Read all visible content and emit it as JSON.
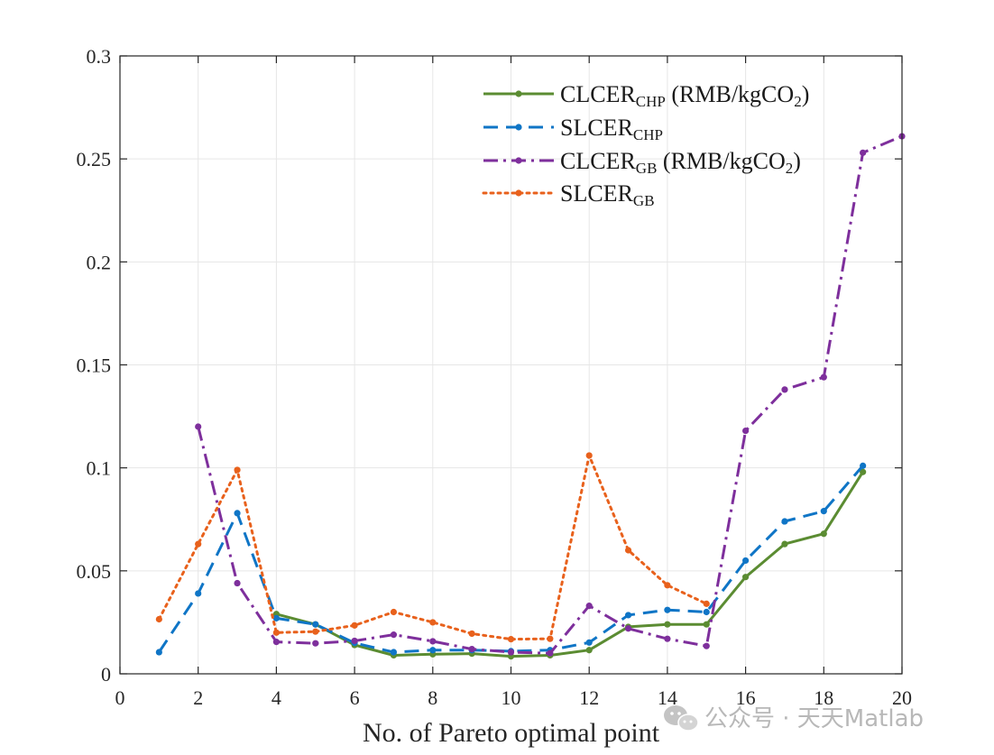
{
  "chart_data": {
    "type": "line",
    "title": "",
    "xlabel": "No. of Pareto optimal point",
    "ylabel": "",
    "xlim": [
      0,
      20
    ],
    "ylim": [
      0,
      0.3
    ],
    "xticks": [
      0,
      2,
      4,
      6,
      8,
      10,
      12,
      14,
      16,
      18,
      20
    ],
    "xtick_labels": [
      "0",
      "2",
      "4",
      "6",
      "8",
      "10",
      "12",
      "14",
      "16",
      "18",
      "20"
    ],
    "yticks": [
      0,
      0.05,
      0.1,
      0.15,
      0.2,
      0.25,
      0.3
    ],
    "ytick_labels": [
      "0",
      "0.05",
      "0.1",
      "0.15",
      "0.2",
      "0.25",
      "0.3"
    ],
    "grid": true,
    "legend_position": "top-right",
    "series": [
      {
        "name": "CLCER_CHP (RMB/kgCO2)",
        "legend_main": "CLCER",
        "legend_sub": "CHP",
        "legend_suffix": " (RMB/kgCO",
        "legend_suffix_sub": "2",
        "legend_end": ")",
        "color": "#5b8c32",
        "style": "solid",
        "x": [
          4,
          5,
          6,
          7,
          8,
          9,
          10,
          11,
          12,
          13,
          14,
          15,
          16,
          17,
          18,
          19
        ],
        "values": [
          0.029,
          0.024,
          0.014,
          0.009,
          0.0095,
          0.0098,
          0.0085,
          0.009,
          0.0115,
          0.0228,
          0.024,
          0.024,
          0.047,
          0.063,
          0.068,
          0.098
        ]
      },
      {
        "name": "SLCER_CHP",
        "legend_main": "SLCER",
        "legend_sub": "CHP",
        "legend_suffix": "",
        "legend_suffix_sub": "",
        "legend_end": "",
        "color": "#0f75c6",
        "style": "dashed",
        "x": [
          1,
          2,
          3,
          4,
          5,
          6,
          7,
          8,
          9,
          10,
          11,
          12,
          13,
          14,
          15,
          16,
          17,
          18,
          19
        ],
        "values": [
          0.0105,
          0.039,
          0.078,
          0.027,
          0.024,
          0.015,
          0.0105,
          0.0115,
          0.0115,
          0.011,
          0.0115,
          0.0152,
          0.0285,
          0.031,
          0.03,
          0.055,
          0.074,
          0.079,
          0.101
        ]
      },
      {
        "name": "CLCER_GB (RMB/kgCO2)",
        "legend_main": "CLCER",
        "legend_sub": "GB",
        "legend_suffix": " (RMB/kgCO",
        "legend_suffix_sub": "2",
        "legend_end": ")",
        "color": "#7e2f9c",
        "style": "dashdot",
        "x": [
          2,
          3,
          4,
          5,
          6,
          7,
          8,
          9,
          10,
          11,
          12,
          13,
          14,
          15,
          16,
          17,
          18,
          19,
          20
        ],
        "values": [
          0.12,
          0.044,
          0.0155,
          0.0148,
          0.016,
          0.019,
          0.0158,
          0.012,
          0.0105,
          0.01,
          0.033,
          0.022,
          0.017,
          0.0135,
          0.118,
          0.138,
          0.144,
          0.253,
          0.261
        ]
      },
      {
        "name": "SLCER_GB",
        "legend_main": "SLCER",
        "legend_sub": "GB",
        "legend_suffix": "",
        "legend_suffix_sub": "",
        "legend_end": "",
        "color": "#e8611c",
        "style": "dotted",
        "x": [
          1,
          2,
          3,
          4,
          5,
          6,
          7,
          8,
          9,
          10,
          11,
          12,
          13,
          14,
          15
        ],
        "values": [
          0.0265,
          0.063,
          0.099,
          0.02,
          0.0205,
          0.0235,
          0.03,
          0.025,
          0.0195,
          0.0168,
          0.017,
          0.106,
          0.06,
          0.043,
          0.034
        ]
      }
    ]
  },
  "watermark": {
    "icon": "wechat-icon",
    "text": "公众号 · 天天Matlab"
  }
}
